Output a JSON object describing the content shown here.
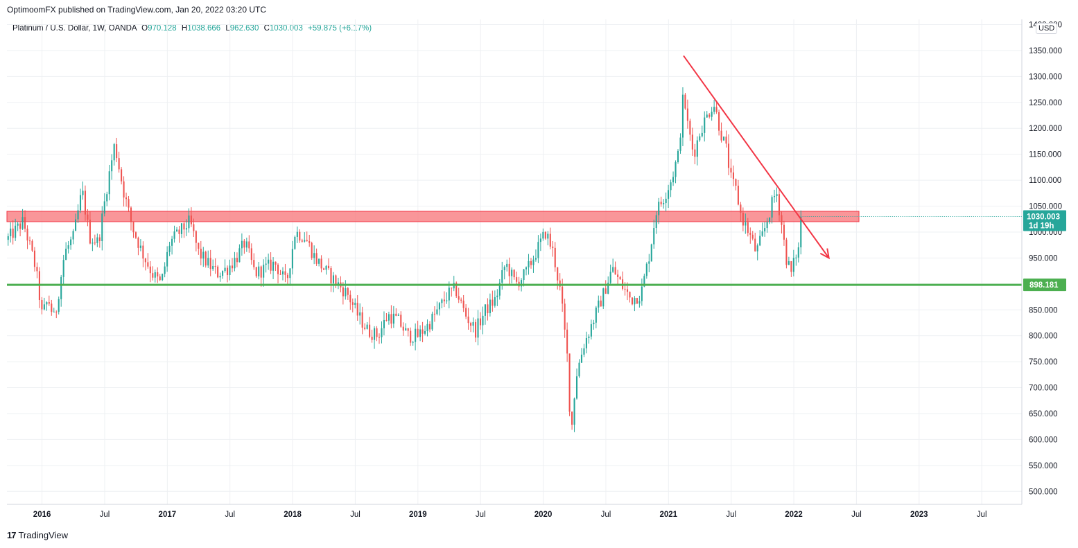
{
  "header": {
    "publisher_line": "OptimoomFX published on TradingView.com, Jan 20, 2022 03:20 UTC"
  },
  "legend": {
    "symbol": "Platinum / U.S. Dollar, 1W, OANDA",
    "open_label": "O",
    "open": "970.128",
    "high_label": "H",
    "high": "1038.666",
    "low_label": "L",
    "low": "962.630",
    "close_label": "C",
    "close": "1030.003",
    "change": "+59.875 (+6.17%)"
  },
  "currency_badge": "USD",
  "footer": {
    "brand": "TradingView",
    "logo_glyph": "17"
  },
  "chart_data": {
    "type": "candlestick",
    "title": "Platinum / U.S. Dollar, 1W, OANDA",
    "y_unit": "USD",
    "ylim": [
      475,
      1410
    ],
    "xlim": [
      2015.72,
      2023.82
    ],
    "grid": true,
    "y_ticks": [
      "1400.000",
      "1350.000",
      "1300.000",
      "1250.000",
      "1200.000",
      "1150.000",
      "1100.000",
      "1050.000",
      "1000.000",
      "950.000",
      "900.000",
      "850.000",
      "800.000",
      "750.000",
      "700.000",
      "650.000",
      "600.000",
      "550.000",
      "500.000"
    ],
    "x_ticks": [
      {
        "label": "2016",
        "t": 2016.0,
        "year": true
      },
      {
        "label": "Jul",
        "t": 2016.5,
        "year": false
      },
      {
        "label": "2017",
        "t": 2017.0,
        "year": true
      },
      {
        "label": "Jul",
        "t": 2017.5,
        "year": false
      },
      {
        "label": "2018",
        "t": 2018.0,
        "year": true
      },
      {
        "label": "Jul",
        "t": 2018.5,
        "year": false
      },
      {
        "label": "2019",
        "t": 2019.0,
        "year": true
      },
      {
        "label": "Jul",
        "t": 2019.5,
        "year": false
      },
      {
        "label": "2020",
        "t": 2020.0,
        "year": true
      },
      {
        "label": "Jul",
        "t": 2020.5,
        "year": false
      },
      {
        "label": "2021",
        "t": 2021.0,
        "year": true
      },
      {
        "label": "Jul",
        "t": 2021.5,
        "year": false
      },
      {
        "label": "2022",
        "t": 2022.0,
        "year": true
      },
      {
        "label": "Jul",
        "t": 2022.5,
        "year": false
      },
      {
        "label": "2023",
        "t": 2023.0,
        "year": true
      },
      {
        "label": "Jul",
        "t": 2023.5,
        "year": false
      }
    ],
    "price_path": [
      [
        2015.72,
        985
      ],
      [
        2015.85,
        1020
      ],
      [
        2015.95,
        930
      ],
      [
        2016.0,
        840
      ],
      [
        2016.05,
        870
      ],
      [
        2016.1,
        830
      ],
      [
        2016.18,
        960
      ],
      [
        2016.25,
        990
      ],
      [
        2016.32,
        1080
      ],
      [
        2016.38,
        990
      ],
      [
        2016.45,
        980
      ],
      [
        2016.52,
        1090
      ],
      [
        2016.58,
        1170
      ],
      [
        2016.65,
        1080
      ],
      [
        2016.72,
        1010
      ],
      [
        2016.8,
        960
      ],
      [
        2016.88,
        920
      ],
      [
        2016.95,
        900
      ],
      [
        2017.02,
        980
      ],
      [
        2017.1,
        1000
      ],
      [
        2017.18,
        1020
      ],
      [
        2017.25,
        960
      ],
      [
        2017.32,
        940
      ],
      [
        2017.4,
        920
      ],
      [
        2017.48,
        930
      ],
      [
        2017.55,
        950
      ],
      [
        2017.62,
        980
      ],
      [
        2017.7,
        920
      ],
      [
        2017.78,
        930
      ],
      [
        2017.86,
        940
      ],
      [
        2017.95,
        900
      ],
      [
        2018.02,
        1000
      ],
      [
        2018.1,
        990
      ],
      [
        2018.18,
        950
      ],
      [
        2018.28,
        920
      ],
      [
        2018.36,
        900
      ],
      [
        2018.44,
        880
      ],
      [
        2018.52,
        840
      ],
      [
        2018.6,
        810
      ],
      [
        2018.68,
        800
      ],
      [
        2018.76,
        840
      ],
      [
        2018.84,
        830
      ],
      [
        2018.92,
        800
      ],
      [
        2019.0,
        800
      ],
      [
        2019.08,
        820
      ],
      [
        2019.16,
        850
      ],
      [
        2019.24,
        880
      ],
      [
        2019.3,
        890
      ],
      [
        2019.38,
        840
      ],
      [
        2019.46,
        810
      ],
      [
        2019.54,
        850
      ],
      [
        2019.62,
        870
      ],
      [
        2019.7,
        940
      ],
      [
        2019.78,
        900
      ],
      [
        2019.86,
        920
      ],
      [
        2019.94,
        960
      ],
      [
        2020.02,
        1000
      ],
      [
        2020.08,
        960
      ],
      [
        2020.14,
        880
      ],
      [
        2020.2,
        740
      ],
      [
        2020.22,
        600
      ],
      [
        2020.26,
        720
      ],
      [
        2020.32,
        780
      ],
      [
        2020.4,
        830
      ],
      [
        2020.48,
        880
      ],
      [
        2020.55,
        930
      ],
      [
        2020.62,
        900
      ],
      [
        2020.7,
        870
      ],
      [
        2020.78,
        880
      ],
      [
        2020.85,
        960
      ],
      [
        2020.9,
        1040
      ],
      [
        2020.95,
        1060
      ],
      [
        2021.02,
        1100
      ],
      [
        2021.08,
        1150
      ],
      [
        2021.12,
        1270
      ],
      [
        2021.15,
        1210
      ],
      [
        2021.2,
        1150
      ],
      [
        2021.26,
        1200
      ],
      [
        2021.32,
        1230
      ],
      [
        2021.36,
        1250
      ],
      [
        2021.42,
        1190
      ],
      [
        2021.46,
        1160
      ],
      [
        2021.5,
        1100
      ],
      [
        2021.54,
        1080
      ],
      [
        2021.58,
        1030
      ],
      [
        2021.64,
        1000
      ],
      [
        2021.7,
        960
      ],
      [
        2021.76,
        1000
      ],
      [
        2021.82,
        1050
      ],
      [
        2021.86,
        1080
      ],
      [
        2021.9,
        1020
      ],
      [
        2021.94,
        950
      ],
      [
        2021.98,
        920
      ],
      [
        2022.02,
        960
      ],
      [
        2022.05,
        970
      ],
      [
        2022.07,
        1030
      ]
    ],
    "resistance_zone": {
      "low": 1020,
      "high": 1040,
      "t_start": 2015.72,
      "t_end": 2022.52
    },
    "support_line": {
      "value": 898.181,
      "label": "898.181"
    },
    "last_price": {
      "value": 1030.003,
      "label": "1030.003",
      "countdown": "1d 19h"
    },
    "trendline": {
      "from": [
        2021.12,
        1340
      ],
      "to": [
        2022.28,
        950
      ]
    }
  },
  "colors": {
    "up": "#26a69a",
    "down": "#ef5350",
    "grid": "#eef0f3",
    "resistance_fill": "#f77c80",
    "resistance_border": "#f23645",
    "support": "#4caf50",
    "trend": "#f23645",
    "last_price_bg": "#26a69a",
    "axis_border": "#d1d4dc",
    "text": "#131722"
  }
}
